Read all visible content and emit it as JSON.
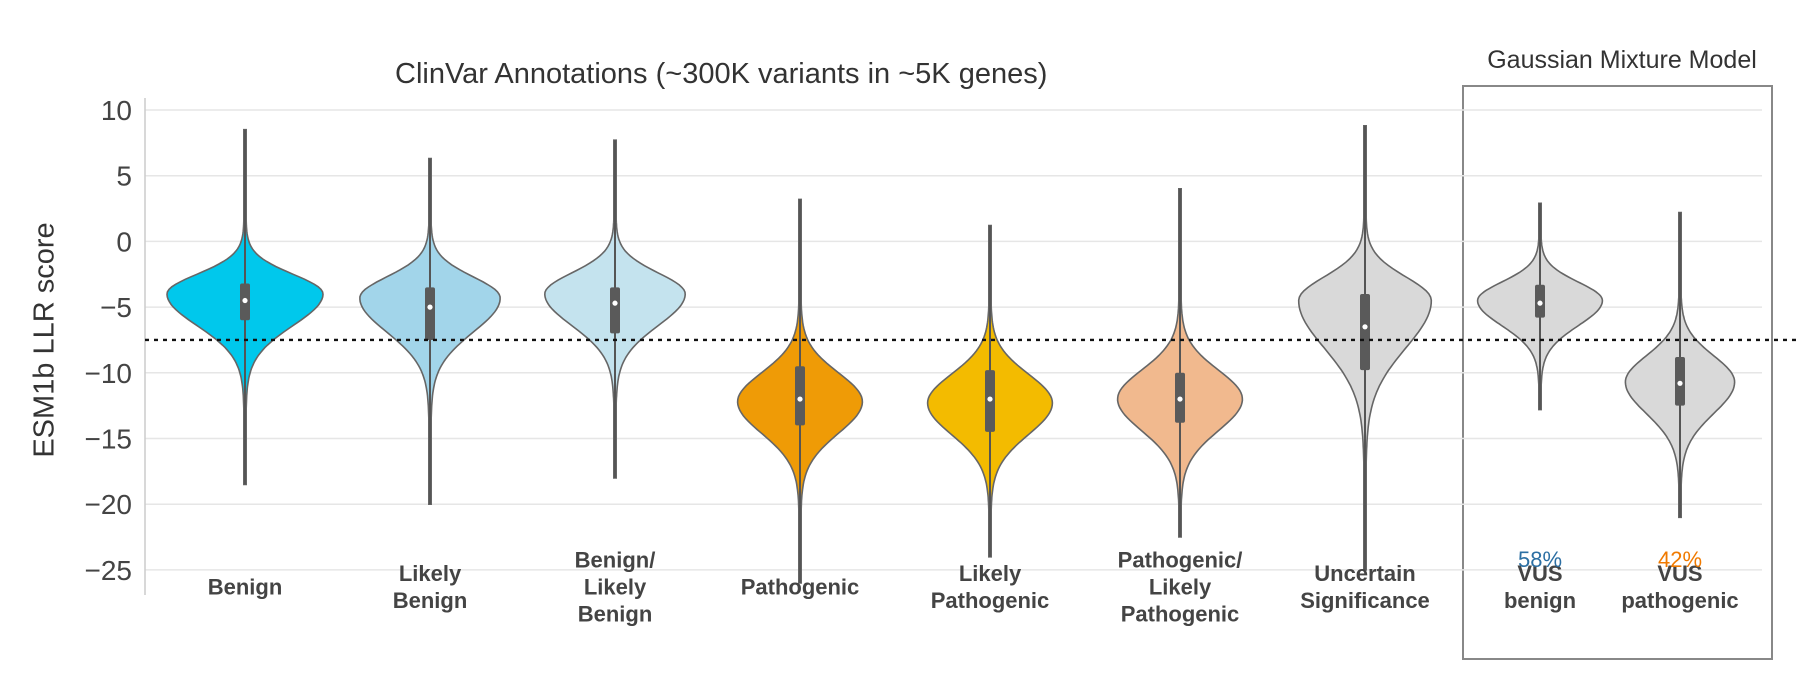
{
  "chart_data": {
    "type": "violin",
    "titles": {
      "main": "ClinVar Annotations (~300K variants in ~5K genes)",
      "gmm": "Gaussian Mixture Model"
    },
    "ylabel": "ESM1b LLR score",
    "ylim": [
      -26,
      10.5
    ],
    "yticks": [
      10,
      5,
      0,
      -5,
      -10,
      -15,
      -20,
      -25
    ],
    "ytick_labels": [
      "10",
      "5",
      "0",
      "−5",
      "−10",
      "−15",
      "−20",
      "−25"
    ],
    "threshold": -7.5,
    "grid": true,
    "categories": [
      {
        "label": [
          "Benign"
        ],
        "color": "#00c8ec",
        "min": -18.5,
        "max": 8.5,
        "q1": -6.0,
        "median": -4.5,
        "q3": -3.2,
        "mode": -4.0,
        "width": 1.0,
        "spread_low": 2.4,
        "spread_high": 1.5
      },
      {
        "label": [
          "Likely",
          "Benign"
        ],
        "color": "#a2d5ea",
        "min": -20,
        "max": 6.3,
        "q1": -7.5,
        "median": -5.0,
        "q3": -3.5,
        "mode": -4.3,
        "width": 0.9,
        "spread_low": 2.6,
        "spread_high": 1.6
      },
      {
        "label": [
          "Benign/",
          "Likely",
          "Benign"
        ],
        "color": "#c4e3ee",
        "min": -18,
        "max": 7.7,
        "q1": -7.0,
        "median": -4.7,
        "q3": -3.5,
        "mode": -4.0,
        "width": 0.9,
        "spread_low": 2.4,
        "spread_high": 1.6
      },
      {
        "label": [
          "Pathogenic"
        ],
        "color": "#ef9b06",
        "min": -26,
        "max": 3.2,
        "q1": -14.0,
        "median": -12.0,
        "q3": -9.5,
        "mode": -12.2,
        "width": 0.8,
        "spread_low": 2.4,
        "spread_high": 2.2
      },
      {
        "label": [
          "Likely",
          "Pathogenic"
        ],
        "color": "#f3bb00",
        "min": -24,
        "max": 1.2,
        "q1": -14.5,
        "median": -12.0,
        "q3": -9.8,
        "mode": -12.3,
        "width": 0.8,
        "spread_low": 2.4,
        "spread_high": 2.2
      },
      {
        "label": [
          "Pathogenic/",
          "Likely",
          "Pathogenic"
        ],
        "color": "#f1b98e",
        "min": -22.5,
        "max": 4.0,
        "q1": -13.8,
        "median": -12.0,
        "q3": -10.0,
        "mode": -12.0,
        "width": 0.8,
        "spread_low": 2.4,
        "spread_high": 2.2
      },
      {
        "label": [
          "Uncertain",
          "Significance"
        ],
        "color": "#d9d9d9",
        "min": -25,
        "max": 8.8,
        "q1": -9.8,
        "median": -6.5,
        "q3": -4.0,
        "mode": -4.5,
        "width": 0.85,
        "spread_low": 3.6,
        "spread_high": 1.8
      },
      {
        "label": [
          "VUS",
          "benign"
        ],
        "color": "#d9d9d9",
        "min": -12.8,
        "max": 2.9,
        "q1": -5.8,
        "median": -4.7,
        "q3": -3.3,
        "mode": -4.5,
        "width": 0.8,
        "spread_low": 1.9,
        "spread_high": 1.4
      },
      {
        "label": [
          "VUS",
          "pathogenic"
        ],
        "color": "#d9d9d9",
        "min": -21.0,
        "max": 2.2,
        "q1": -12.5,
        "median": -10.8,
        "q3": -8.8,
        "mode": -10.7,
        "width": 0.7,
        "spread_low": 2.4,
        "spread_high": 2.0
      }
    ],
    "percent_labels": [
      {
        "category_index": 7,
        "text": "58%",
        "color": "#2c6fa3"
      },
      {
        "category_index": 8,
        "text": "42%",
        "color": "#f07a00"
      }
    ]
  }
}
